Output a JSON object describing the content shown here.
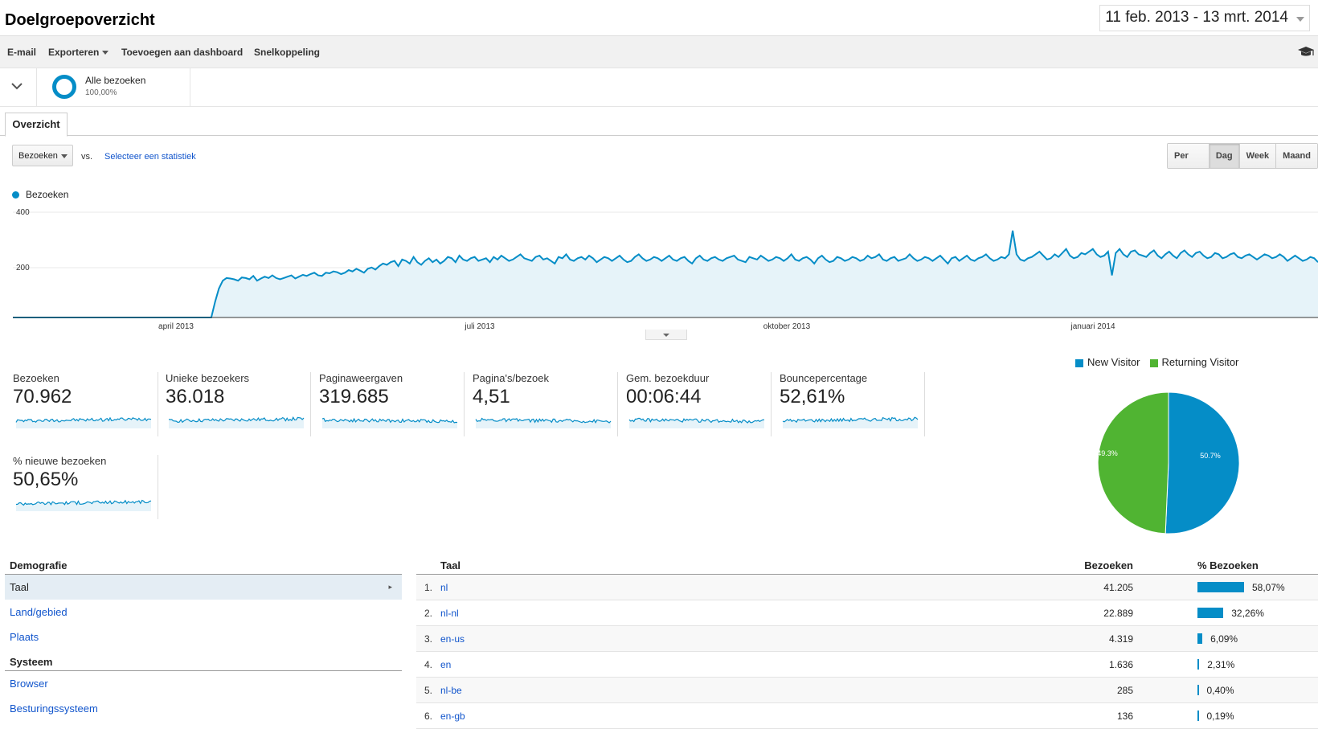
{
  "header": {
    "title": "Doelgroepoverzicht",
    "date_range": "11 feb. 2013 - 13 mrt. 2014"
  },
  "toolbar": {
    "email": "E-mail",
    "export": "Exporteren",
    "add_dashboard": "Toevoegen aan dashboard",
    "shortcut": "Snelkoppeling"
  },
  "segment": {
    "name": "Alle bezoeken",
    "pct": "100,00%"
  },
  "tabs": {
    "overview": "Overzicht"
  },
  "controls": {
    "metric": "Bezoeken",
    "vs": "vs.",
    "compare": "Selecteer een statistiek"
  },
  "granularity": [
    "Per uur",
    "Dag",
    "Week",
    "Maand"
  ],
  "granularity_active": "Dag",
  "colors": {
    "accent": "#058dc7",
    "new": "#058dc7",
    "returning": "#50b432",
    "link": "#1155cc"
  },
  "chart_data": [
    {
      "type": "area",
      "legend": "Bezoeken",
      "ylim": [
        0,
        400
      ],
      "yticks": [
        "400",
        "200"
      ],
      "xticks": [
        "april 2013",
        "juli 2013",
        "oktober 2013",
        "januari 2014"
      ],
      "x_start": "2013-02-11",
      "x_end": "2014-03-13",
      "series": [
        {
          "name": "Bezoeken",
          "values": [
            0,
            0,
            0,
            0,
            0,
            0,
            0,
            0,
            0,
            0,
            0,
            0,
            0,
            0,
            0,
            0,
            0,
            0,
            0,
            0,
            0,
            0,
            0,
            0,
            0,
            0,
            0,
            0,
            0,
            0,
            0,
            0,
            0,
            0,
            0,
            0,
            0,
            0,
            0,
            0,
            0,
            0,
            0,
            0,
            0,
            0,
            0,
            0,
            0,
            0,
            0,
            0,
            0,
            60,
            110,
            140,
            150,
            148,
            145,
            140,
            152,
            150,
            145,
            158,
            140,
            148,
            155,
            150,
            160,
            150,
            145,
            150,
            155,
            160,
            148,
            155,
            162,
            158,
            165,
            170,
            160,
            158,
            170,
            168,
            175,
            172,
            165,
            170,
            180,
            175,
            185,
            178,
            170,
            185,
            190,
            182,
            195,
            205,
            200,
            210,
            215,
            195,
            220,
            215,
            205,
            230,
            210,
            200,
            215,
            225,
            210,
            220,
            205,
            215,
            230,
            225,
            210,
            235,
            220,
            215,
            225,
            230,
            215,
            220,
            225,
            210,
            230,
            220,
            235,
            225,
            215,
            220,
            230,
            240,
            225,
            220,
            215,
            230,
            235,
            220,
            225,
            215,
            205,
            230,
            225,
            240,
            220,
            215,
            225,
            230,
            220,
            235,
            225,
            210,
            220,
            230,
            225,
            215,
            225,
            235,
            220,
            210,
            215,
            230,
            240,
            225,
            215,
            220,
            230,
            225,
            215,
            225,
            235,
            220,
            215,
            225,
            230,
            215,
            205,
            225,
            235,
            220,
            215,
            225,
            230,
            220,
            215,
            225,
            230,
            235,
            220,
            215,
            210,
            230,
            225,
            220,
            235,
            225,
            215,
            220,
            230,
            225,
            215,
            225,
            240,
            220,
            215,
            225,
            230,
            220,
            205,
            225,
            235,
            220,
            210,
            215,
            230,
            225,
            215,
            220,
            230,
            225,
            215,
            220,
            235,
            225,
            230,
            240,
            220,
            215,
            225,
            230,
            215,
            220,
            225,
            240,
            225,
            215,
            220,
            230,
            225,
            215,
            225,
            235,
            220,
            205,
            225,
            230,
            215,
            225,
            235,
            220,
            215,
            225,
            230,
            240,
            225,
            215,
            220,
            230,
            225,
            240,
            330,
            240,
            220,
            215,
            225,
            230,
            240,
            250,
            235,
            220,
            225,
            240,
            230,
            245,
            260,
            235,
            225,
            230,
            245,
            240,
            250,
            260,
            240,
            230,
            235,
            250,
            160,
            245,
            260,
            240,
            230,
            250,
            255,
            240,
            235,
            230,
            245,
            255,
            235,
            225,
            240,
            250,
            235,
            225,
            245,
            255,
            240,
            230,
            245,
            250,
            235,
            225,
            230,
            245,
            240,
            225,
            230,
            240,
            245,
            230,
            225,
            235,
            240,
            230,
            220,
            230,
            240,
            235,
            225,
            230,
            240,
            230,
            215,
            225,
            235,
            225,
            215,
            220,
            230,
            225,
            210
          ]
        }
      ],
      "fill": "#e6f3f9",
      "grid": true
    },
    {
      "type": "pie",
      "legend_position": "top",
      "slices": [
        {
          "name": "New Visitor",
          "value": 50.7,
          "label": "50.7%",
          "color": "#058dc7"
        },
        {
          "name": "Returning Visitor",
          "value": 49.3,
          "label": "49.3%",
          "color": "#50b432"
        }
      ]
    }
  ],
  "scorecards": [
    {
      "label": "Bezoeken",
      "value": "70.962"
    },
    {
      "label": "Unieke bezoekers",
      "value": "36.018"
    },
    {
      "label": "Paginaweergaven",
      "value": "319.685"
    },
    {
      "label": "Pagina's/bezoek",
      "value": "4,51"
    },
    {
      "label": "Gem. bezoekduur",
      "value": "00:06:44"
    },
    {
      "label": "Bouncepercentage",
      "value": "52,61%"
    },
    {
      "label": "% nieuwe bezoeken",
      "value": "50,65%"
    }
  ],
  "demographics": {
    "section1": "Demografie",
    "items1": [
      "Taal",
      "Land/gebied",
      "Plaats"
    ],
    "selected": "Taal",
    "section2": "Systeem",
    "items2": [
      "Browser",
      "Besturingssysteem"
    ]
  },
  "table": {
    "headers": {
      "dimension": "Taal",
      "visits": "Bezoeken",
      "pct": "% Bezoeken"
    },
    "rows": [
      {
        "idx": "1.",
        "lang": "nl",
        "visits": "41.205",
        "pct": "58,07%",
        "share": 58.07
      },
      {
        "idx": "2.",
        "lang": "nl-nl",
        "visits": "22.889",
        "pct": "32,26%",
        "share": 32.26
      },
      {
        "idx": "3.",
        "lang": "en-us",
        "visits": "4.319",
        "pct": "6,09%",
        "share": 6.09
      },
      {
        "idx": "4.",
        "lang": "en",
        "visits": "1.636",
        "pct": "2,31%",
        "share": 2.31
      },
      {
        "idx": "5.",
        "lang": "nl-be",
        "visits": "285",
        "pct": "0,40%",
        "share": 0.4
      },
      {
        "idx": "6.",
        "lang": "en-gb",
        "visits": "136",
        "pct": "0,19%",
        "share": 0.19
      }
    ]
  }
}
